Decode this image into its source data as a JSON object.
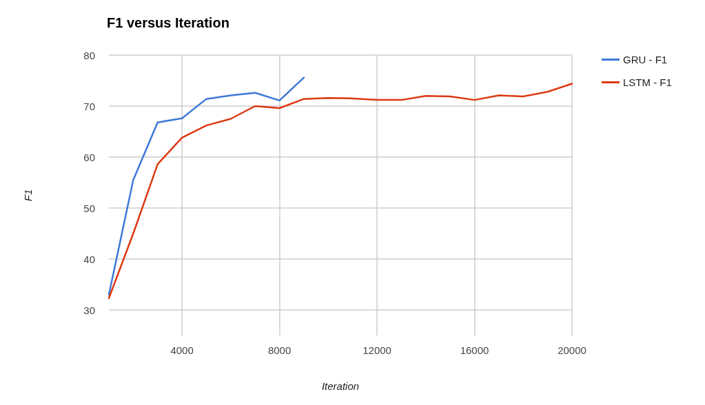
{
  "chart_data": {
    "type": "line",
    "title": "F1 versus Iteration",
    "xlabel": "Iteration",
    "ylabel": "F1",
    "x": [
      1000,
      2000,
      3000,
      4000,
      5000,
      6000,
      7000,
      8000,
      9000,
      10000,
      11000,
      12000,
      13000,
      14000,
      15000,
      16000,
      17000,
      18000,
      19000,
      20000
    ],
    "series": [
      {
        "name": "GRU - F1",
        "color": "#3c78d8",
        "values": [
          33.0,
          55.5,
          66.8,
          67.6,
          71.4,
          72.1,
          72.6,
          71.1,
          75.6,
          null,
          null,
          null,
          null,
          null,
          null,
          null,
          null,
          null,
          null,
          null
        ]
      },
      {
        "name": "LSTM - F1",
        "color": "#dc3912",
        "values": [
          32.3,
          45,
          58.6,
          63.8,
          66.2,
          67.5,
          70.0,
          69.6,
          71.4,
          71.6,
          71.5,
          71.2,
          71.2,
          72.0,
          71.9,
          71.2,
          72.1,
          71.9,
          72.8,
          74.4
        ]
      }
    ],
    "xlim": [
      1000,
      20000
    ],
    "xticks": [
      4000,
      8000,
      12000,
      16000,
      20000
    ],
    "ylim": [
      25,
      80
    ],
    "yticks": [
      30,
      40,
      50,
      60,
      70,
      80
    ],
    "grid": true,
    "legend": "right",
    "marker": "none",
    "line_style": "solid"
  }
}
